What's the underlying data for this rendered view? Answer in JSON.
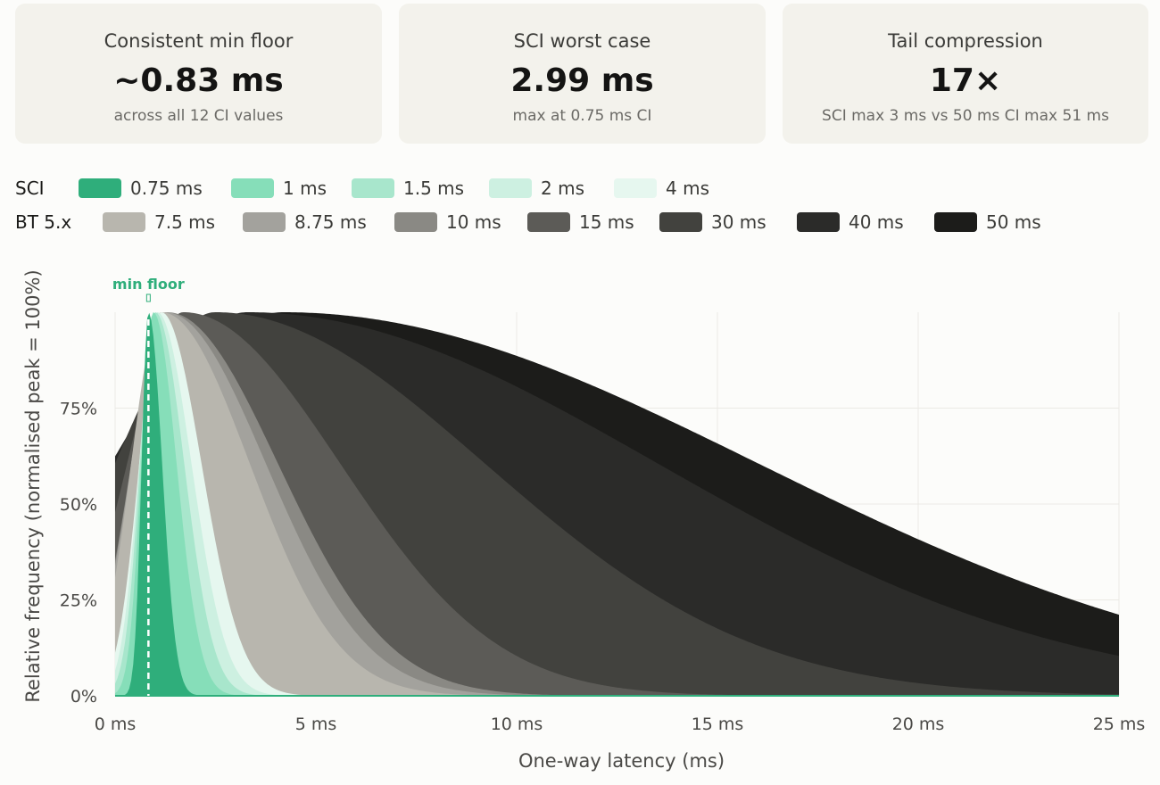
{
  "stats": [
    {
      "label": "Consistent min floor",
      "value": "~0.83 ms",
      "sub": "across all 12 CI values"
    },
    {
      "label": "SCI worst case",
      "value": "2.99 ms",
      "sub": "max at 0.75 ms CI"
    },
    {
      "label": "Tail compression",
      "value": "17×",
      "sub": "SCI max 3 ms vs 50 ms CI max 51 ms"
    }
  ],
  "legend": {
    "sci_group": "SCI",
    "bt_group": "BT 5.x"
  },
  "chart_data": {
    "type": "area",
    "xlabel": "One-way latency (ms)",
    "ylabel": "Relative frequency (normalised peak = 100%)",
    "xlim": [
      0,
      25
    ],
    "ylim": [
      0,
      100
    ],
    "x_ticks": [
      0,
      5,
      10,
      15,
      20,
      25
    ],
    "x_tick_labels": [
      "0 ms",
      "5 ms",
      "10 ms",
      "15 ms",
      "20 ms",
      "25 ms"
    ],
    "y_ticks": [
      0,
      25,
      50,
      75
    ],
    "y_tick_labels": [
      "0%",
      "25%",
      "50%",
      "75%"
    ],
    "grid": true,
    "legend_position": "top",
    "annotation": {
      "label": "min floor",
      "x": 0.83
    },
    "series": [
      {
        "name": "50 ms",
        "group": "BT 5.x",
        "color": "#1c1c1a",
        "peak": 4.2,
        "sl": 4.3,
        "sr": 11.8,
        "floor": 1.2
      },
      {
        "name": "40 ms",
        "group": "BT 5.x",
        "color": "#2b2b29",
        "peak": 3.3,
        "sl": 3.4,
        "sr": 10.2,
        "floor": 1.2
      },
      {
        "name": "30 ms",
        "group": "BT 5.x",
        "color": "#42423e",
        "peak": 2.5,
        "sl": 2.5,
        "sr": 6.7,
        "floor": 1.2
      },
      {
        "name": "15 ms",
        "group": "BT 5.x",
        "color": "#5c5b57",
        "peak": 1.7,
        "sl": 1.4,
        "sr": 3.9,
        "floor": 1.1
      },
      {
        "name": "10 ms",
        "group": "BT 5.x",
        "color": "#8a8984",
        "peak": 1.3,
        "sl": 0.9,
        "sr": 2.75,
        "floor": 1.0
      },
      {
        "name": "8.75 ms",
        "group": "BT 5.x",
        "color": "#a3a29d",
        "peak": 1.25,
        "sl": 0.85,
        "sr": 2.5,
        "floor": 0.9
      },
      {
        "name": "7.5 ms",
        "group": "BT 5.x",
        "color": "#b8b6ae",
        "peak": 1.15,
        "sl": 0.75,
        "sr": 2.2,
        "floor": 0.8
      },
      {
        "name": "4 ms",
        "group": "SCI",
        "color": "#e6f7ef",
        "peak": 1.15,
        "sl": 0.55,
        "sr": 1.0,
        "floor": 0.3
      },
      {
        "name": "2 ms",
        "group": "SCI",
        "color": "#cdf0e1",
        "peak": 1.05,
        "sl": 0.45,
        "sr": 0.85,
        "floor": 0.2
      },
      {
        "name": "1.5 ms",
        "group": "SCI",
        "color": "#a8e6cc",
        "peak": 1.0,
        "sl": 0.38,
        "sr": 0.72,
        "floor": 0.2
      },
      {
        "name": "1 ms",
        "group": "SCI",
        "color": "#86deb9",
        "peak": 0.95,
        "sl": 0.3,
        "sr": 0.58,
        "floor": 0.1
      },
      {
        "name": "0.75 ms",
        "group": "SCI",
        "color": "#2fae7b",
        "peak": 0.83,
        "sl": 0.17,
        "sr": 0.34,
        "floor": 0.1
      }
    ]
  }
}
